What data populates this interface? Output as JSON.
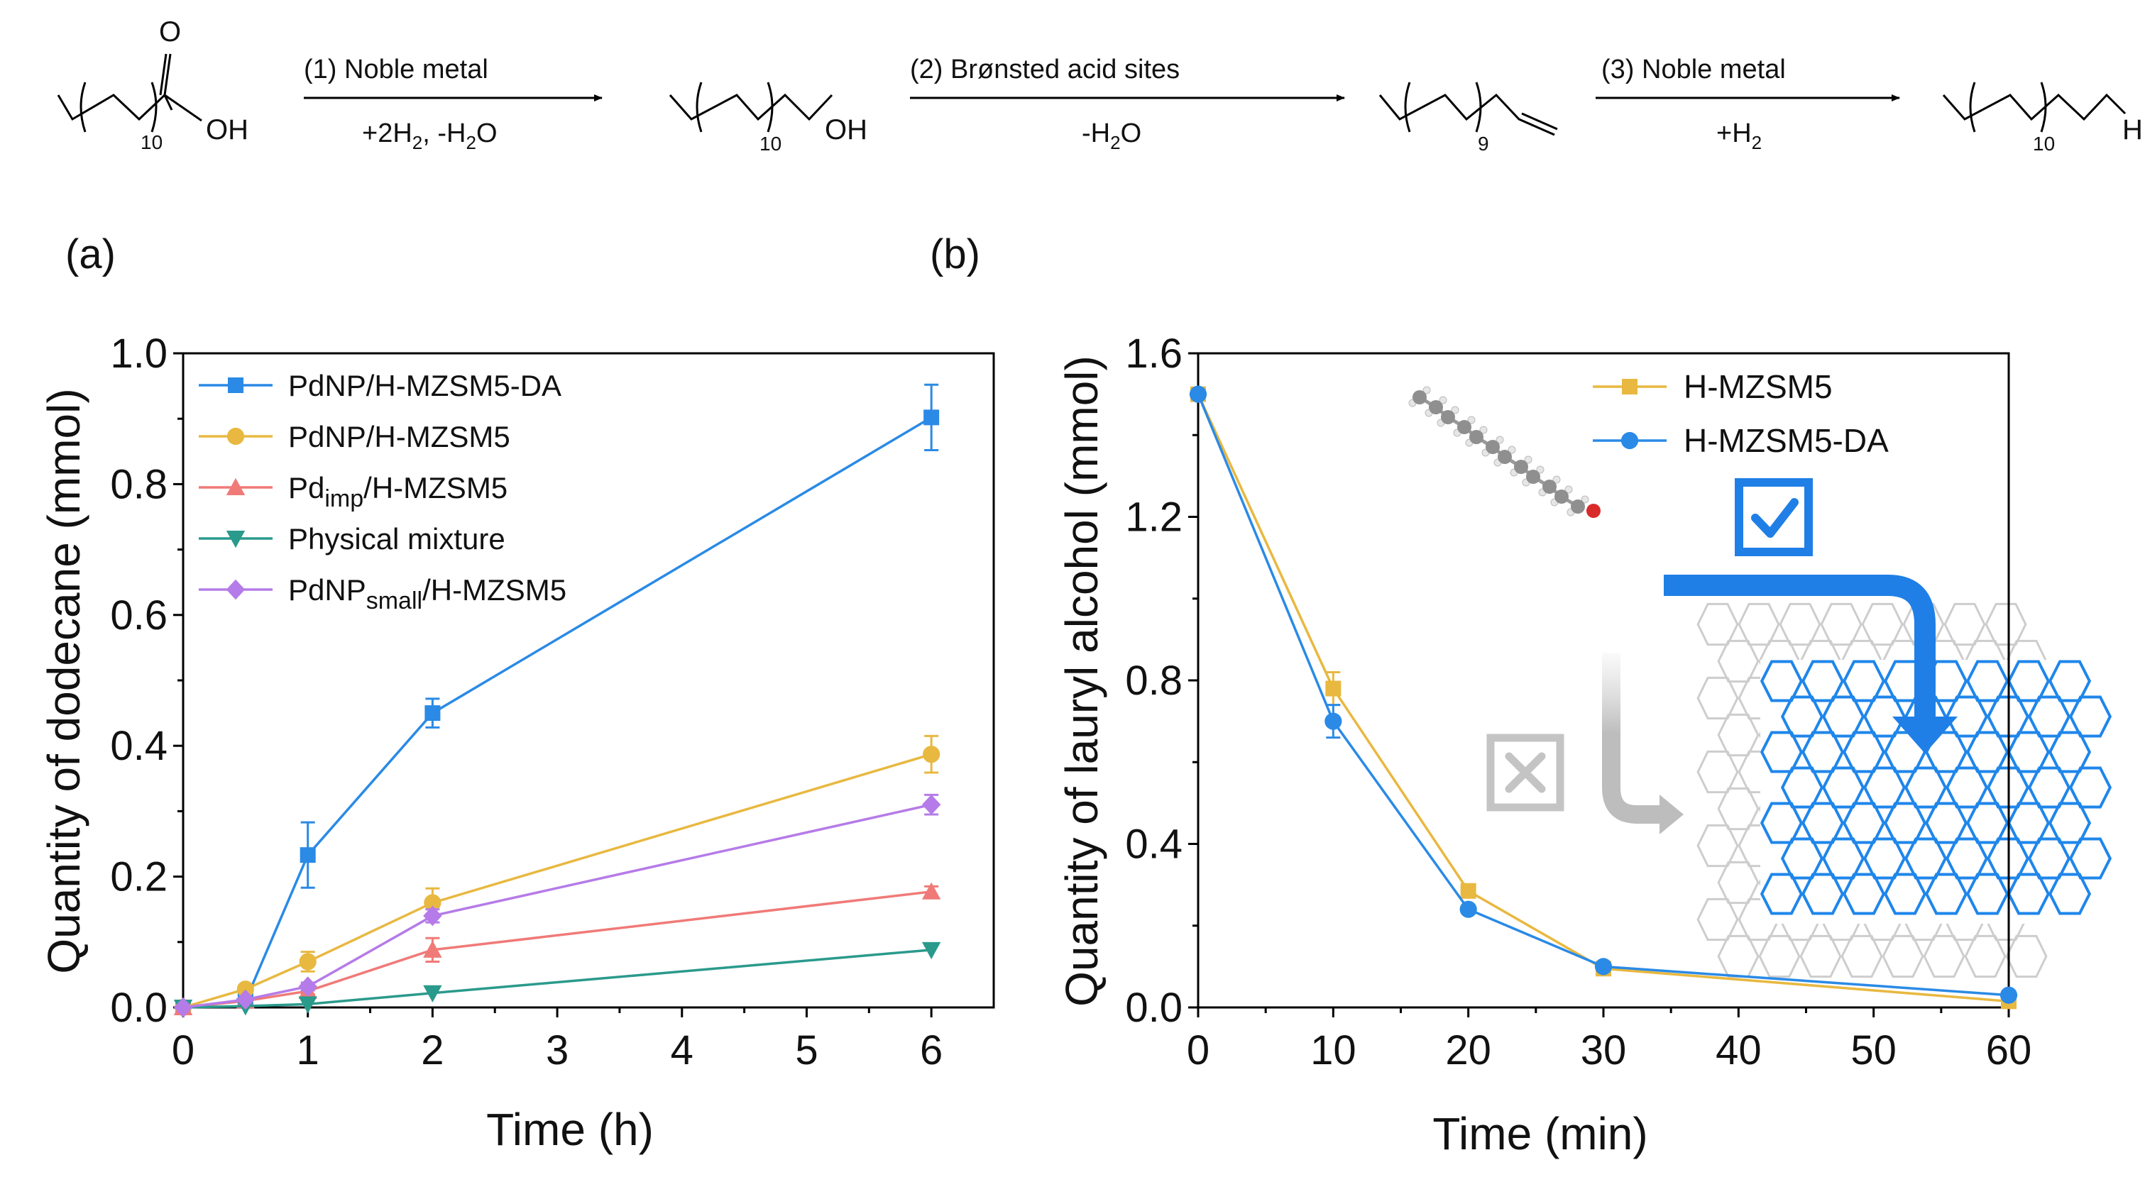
{
  "scheme": {
    "reactant_suffix": "OH",
    "carbonyl_o": "O",
    "steps": [
      {
        "label": "(1) Noble metal",
        "sub": "+2H",
        "sub2": "2",
        "sub3": ", -H",
        "sub4": "2",
        "sub5": "O"
      },
      {
        "label": "(2) Brønsted acid sites",
        "sub": "-H",
        "sub2": "2",
        "sub3": "O"
      },
      {
        "label": "(3) Noble metal",
        "sub": "+H",
        "sub2": "2"
      }
    ],
    "products": [
      {
        "suffix": "OH",
        "n": "10"
      },
      {
        "n": "9"
      },
      {
        "suffix": "H",
        "n": "10"
      }
    ],
    "reactant_n": "10"
  },
  "chart_data": [
    {
      "panel_label": "(a)",
      "type": "line",
      "xlabel": "Time (h)",
      "ylabel": "Quantity of dodecane (mmol)",
      "xlim": [
        0,
        6.5
      ],
      "ylim": [
        0,
        1.0
      ],
      "xticks": [
        "0",
        "1",
        "2",
        "3",
        "4",
        "5",
        "6"
      ],
      "yticks": [
        "0.0",
        "0.2",
        "0.4",
        "0.6",
        "0.8",
        "1.0"
      ],
      "legend": "top-left",
      "series": [
        {
          "name": "PdNP/H-MZSM5-DA",
          "color": "#2a8ae6",
          "marker": "square",
          "x": [
            0,
            0.5,
            1,
            2,
            6
          ],
          "y": [
            0.0,
            0.01,
            0.233,
            0.45,
            0.902
          ],
          "err": [
            0,
            0,
            0.05,
            0.022,
            0.05
          ]
        },
        {
          "name": "PdNP/H-MZSM5",
          "color": "#e8b840",
          "marker": "circle",
          "x": [
            0,
            0.5,
            1,
            2,
            6
          ],
          "y": [
            0.0,
            0.028,
            0.07,
            0.16,
            0.387
          ],
          "err": [
            0,
            0,
            0.015,
            0.022,
            0.028
          ]
        },
        {
          "name": "Pdimp/H-MZSM5",
          "name_main": "Pd",
          "name_sub": "imp",
          "name_rest": "/H-MZSM5",
          "color": "#f07a78",
          "marker": "triangle",
          "x": [
            0,
            0.5,
            1,
            2,
            6
          ],
          "y": [
            0.0,
            0.01,
            0.025,
            0.088,
            0.177
          ],
          "err": [
            0,
            0,
            0.005,
            0.018,
            0.008
          ]
        },
        {
          "name": "Physical mixture",
          "color": "#2a9a8c",
          "marker": "triangle-down",
          "x": [
            0,
            0.5,
            1,
            2,
            6
          ],
          "y": [
            0.0,
            0.002,
            0.005,
            0.022,
            0.088
          ],
          "err": [
            0,
            0,
            0,
            0,
            0
          ]
        },
        {
          "name": "PdNPsmall/H-MZSM5",
          "name_main": "PdNP",
          "name_sub": "small",
          "name_rest": "/H-MZSM5",
          "color": "#b57be8",
          "marker": "diamond",
          "x": [
            0,
            0.5,
            1,
            2,
            6
          ],
          "y": [
            0.0,
            0.012,
            0.032,
            0.14,
            0.31
          ],
          "err": [
            0,
            0,
            0.006,
            0.01,
            0.015
          ]
        }
      ]
    },
    {
      "panel_label": "(b)",
      "type": "line",
      "xlabel": "Time (min)",
      "ylabel": "Quantity of lauryl alcohol (mmol)",
      "xlim": [
        0,
        60
      ],
      "ylim": [
        0,
        1.6
      ],
      "xticks": [
        "0",
        "10",
        "20",
        "30",
        "40",
        "50",
        "60"
      ],
      "yticks": [
        "0.0",
        "0.4",
        "0.8",
        "1.2",
        "1.6"
      ],
      "legend": "top-right",
      "series": [
        {
          "name": "H-MZSM5",
          "color": "#e8b840",
          "marker": "square",
          "x": [
            0,
            10,
            20,
            30,
            60
          ],
          "y": [
            1.5,
            0.78,
            0.285,
            0.095,
            0.015
          ],
          "err": [
            0,
            0.04,
            0.01,
            0.01,
            0
          ]
        },
        {
          "name": "H-MZSM5-DA",
          "color": "#2a8ae6",
          "marker": "circle",
          "x": [
            0,
            10,
            20,
            30,
            60
          ],
          "y": [
            1.5,
            0.7,
            0.24,
            0.1,
            0.03
          ],
          "err": [
            0,
            0.04,
            0.01,
            0.01,
            0
          ]
        }
      ]
    }
  ]
}
